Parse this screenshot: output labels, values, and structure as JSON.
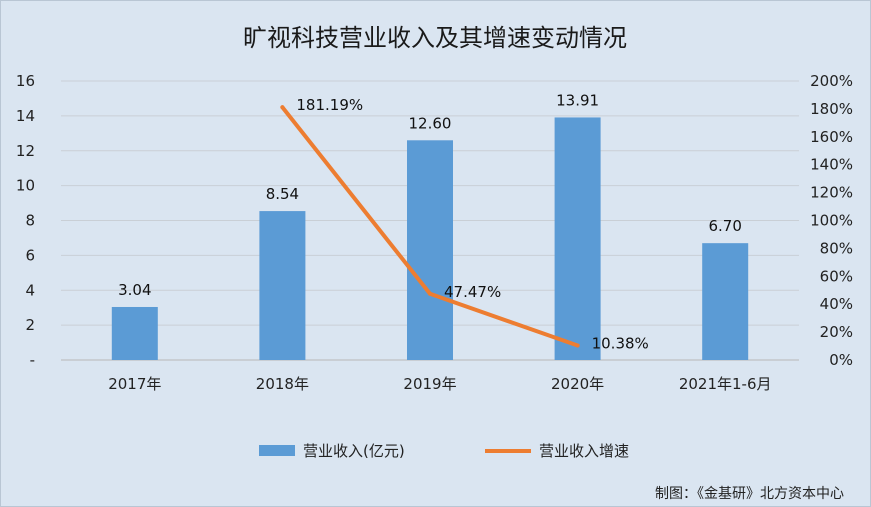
{
  "chart_data": {
    "type": "bar",
    "title": "旷视科技营业收入及其增速变动情况",
    "categories": [
      "2017年",
      "2018年",
      "2019年",
      "2020年",
      "2021年1-6月"
    ],
    "series": [
      {
        "name": "营业收入(亿元)",
        "type": "bar",
        "axis": "left",
        "color": "#5b9bd5",
        "values": [
          3.04,
          8.54,
          12.6,
          13.91,
          6.7
        ],
        "labels": [
          "3.04",
          "8.54",
          "12.60",
          "13.91",
          "6.70"
        ]
      },
      {
        "name": "营业收入增速",
        "type": "line",
        "axis": "right",
        "color": "#ed7d31",
        "values": [
          null,
          181.19,
          47.47,
          10.38,
          null
        ],
        "labels": [
          "",
          "181.19%",
          "47.47%",
          "10.38%",
          ""
        ]
      }
    ],
    "y_left": {
      "min": 0,
      "max": 16,
      "ticks": [
        0,
        2,
        4,
        6,
        8,
        10,
        12,
        14,
        16
      ],
      "tick_labels": [
        "-",
        "2",
        "4",
        "6",
        "8",
        "10",
        "12",
        "14",
        "16"
      ]
    },
    "y_right": {
      "min": 0,
      "max": 200,
      "ticks": [
        0,
        20,
        40,
        60,
        80,
        100,
        120,
        140,
        160,
        180,
        200
      ],
      "tick_labels": [
        "0%",
        "20%",
        "40%",
        "60%",
        "80%",
        "100%",
        "120%",
        "140%",
        "160%",
        "180%",
        "200%"
      ]
    },
    "grid": true,
    "legend_position": "bottom",
    "xlabel": "",
    "ylabel": ""
  },
  "credit": "制图：《金基研》北方资本中心"
}
